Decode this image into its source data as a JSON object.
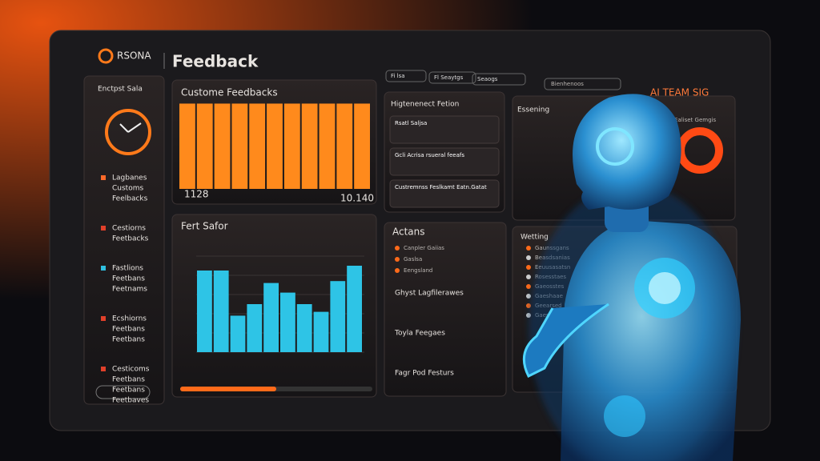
{
  "header": {
    "logo": "RSONA",
    "title": "Feedback",
    "filters": [
      "Fi lsa",
      "Fl Seaytgs",
      "Seaogs"
    ],
    "action": "Bienhenoos",
    "brand": "AI TEAM SIG"
  },
  "sidebar": {
    "title": "Enctpst Sala",
    "groups": [
      [
        "Lagbanes",
        "Customs",
        "Feelbacks"
      ],
      [
        "Cestiorns",
        "Feetbacks"
      ],
      [
        "Fastlions",
        "Feetbans",
        "Feetnams"
      ],
      [
        "Ecshiorns",
        "Feetbans",
        "Feetbans"
      ],
      [
        "Cesticoms",
        "Feetbans",
        "Feetbans",
        "Feetbaves"
      ]
    ],
    "marker_colors": [
      "#ff6a2a",
      "#e0402a",
      "#2fc0e0",
      "#e0402a",
      "#e0402a"
    ]
  },
  "feedback_chart": {
    "title": "Custome Feedbacks",
    "color": "#ff8a1c",
    "values": [
      96,
      96,
      96,
      96,
      96,
      96,
      96,
      96,
      96,
      96,
      96
    ],
    "ylim": [
      0,
      100
    ],
    "min_label": "1128",
    "max_label": "10.140"
  },
  "sales_chart": {
    "title": "Fert Safor",
    "color": "#2ec4e6",
    "values": [
      85,
      85,
      38,
      50,
      72,
      62,
      50,
      42,
      74,
      90
    ],
    "ylim": [
      0,
      100
    ]
  },
  "engagement": {
    "title": "Higtenenect Fetion",
    "items": [
      "Rsatl Saljsa",
      "Gcli Acrisa rsueral feeafs",
      "Custremnss Feslkamt Eatn.Gatat"
    ]
  },
  "essening": {
    "title": "Essening",
    "subtitle": "Ealiset Gemgis"
  },
  "actions": {
    "title": "Actans",
    "items": [
      "Canpler Gaiias",
      "Gaslsa",
      "Eengsland"
    ],
    "sections": [
      "Ghyst Lagfilerawes",
      "Toyla Feegaes",
      "Fagr Pod Festurs"
    ]
  },
  "waiting": {
    "title": "Wetting",
    "items": [
      "Gaunssgans",
      "Beasdsanias",
      "Eeuusasatsn",
      "Rosesstaes",
      "Gaeosstes",
      "Gaeshaae",
      "Geearsed",
      "Gaesons"
    ]
  }
}
